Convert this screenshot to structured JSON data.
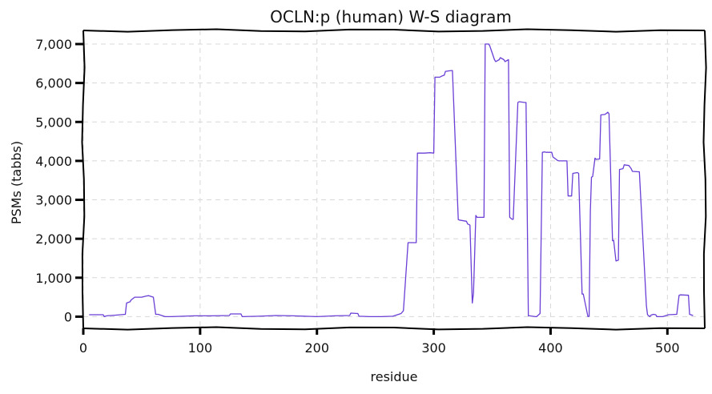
{
  "chart_data": {
    "type": "line",
    "title": "OCLN:p (human) W-S diagram",
    "xlabel": "residue",
    "ylabel": "PSMs (tabbs)",
    "xlim": [
      0,
      532
    ],
    "ylim": [
      -300,
      7350
    ],
    "xticks": [
      0,
      100,
      200,
      300,
      400,
      500
    ],
    "xtick_labels": [
      "0",
      "100",
      "200",
      "300",
      "400",
      "500"
    ],
    "yticks": [
      0,
      1000,
      2000,
      3000,
      4000,
      5000,
      6000,
      7000
    ],
    "ytick_labels": [
      "0",
      "1,000",
      "2,000",
      "3,000",
      "4,000",
      "5,000",
      "6,000",
      "7,000"
    ],
    "grid": true,
    "color": "#6a3fd6",
    "series": [
      {
        "x": [
          5,
          17,
          18,
          20,
          28,
          36,
          37,
          40,
          41,
          44,
          50,
          54,
          56,
          60,
          62,
          64,
          70,
          75,
          85,
          95,
          110,
          125,
          126,
          135,
          136,
          150,
          165,
          180,
          200,
          215,
          228,
          229,
          235,
          236,
          245,
          255,
          265,
          272,
          274,
          278,
          279,
          285,
          286,
          292,
          297,
          300,
          301,
          305,
          307,
          309,
          310,
          315,
          316,
          321,
          322,
          328,
          329,
          331,
          333,
          334,
          336,
          337,
          343,
          344,
          347,
          348,
          352,
          353,
          356,
          357,
          360,
          361,
          364,
          365,
          367,
          368,
          372,
          373,
          378,
          379,
          381,
          382,
          387,
          388,
          391,
          393,
          395,
          396,
          401,
          402,
          406,
          407,
          414,
          415,
          418,
          419,
          423,
          424,
          427,
          428,
          432,
          433,
          434,
          435,
          436,
          438,
          439,
          442,
          443,
          446,
          447,
          449,
          450,
          453,
          454,
          456,
          458,
          459,
          462,
          463,
          467,
          469,
          470,
          475,
          476,
          482,
          483,
          485,
          486,
          488,
          490,
          491,
          496,
          500,
          501,
          508,
          510,
          511,
          518,
          519,
          522
        ],
        "y": [
          50,
          50,
          0,
          20,
          40,
          60,
          350,
          380,
          430,
          500,
          500,
          530,
          540,
          500,
          60,
          60,
          0,
          0,
          10,
          20,
          20,
          30,
          70,
          70,
          0,
          10,
          30,
          20,
          0,
          20,
          30,
          90,
          80,
          10,
          0,
          0,
          10,
          80,
          150,
          1900,
          1900,
          1900,
          4200,
          4200,
          4210,
          4200,
          6150,
          6150,
          6180,
          6200,
          6300,
          6320,
          6320,
          2490,
          2480,
          2450,
          2380,
          2350,
          350,
          600,
          2600,
          2550,
          2550,
          7000,
          7000,
          6950,
          6600,
          6550,
          6600,
          6650,
          6600,
          6550,
          6600,
          2550,
          2500,
          2500,
          5500,
          5520,
          5500,
          5500,
          20,
          20,
          0,
          0,
          80,
          4220,
          4230,
          4220,
          4220,
          4100,
          4010,
          4000,
          4000,
          3100,
          3100,
          3680,
          3700,
          3680,
          580,
          580,
          0,
          10,
          2700,
          3580,
          3600,
          4070,
          4040,
          4050,
          5180,
          5190,
          5200,
          5250,
          5210,
          1950,
          1960,
          1430,
          1450,
          3780,
          3800,
          3900,
          3880,
          3800,
          3730,
          3720,
          3720,
          280,
          50,
          0,
          40,
          60,
          50,
          0,
          0,
          40,
          50,
          60,
          550,
          560,
          550,
          60,
          30
        ]
      }
    ]
  }
}
